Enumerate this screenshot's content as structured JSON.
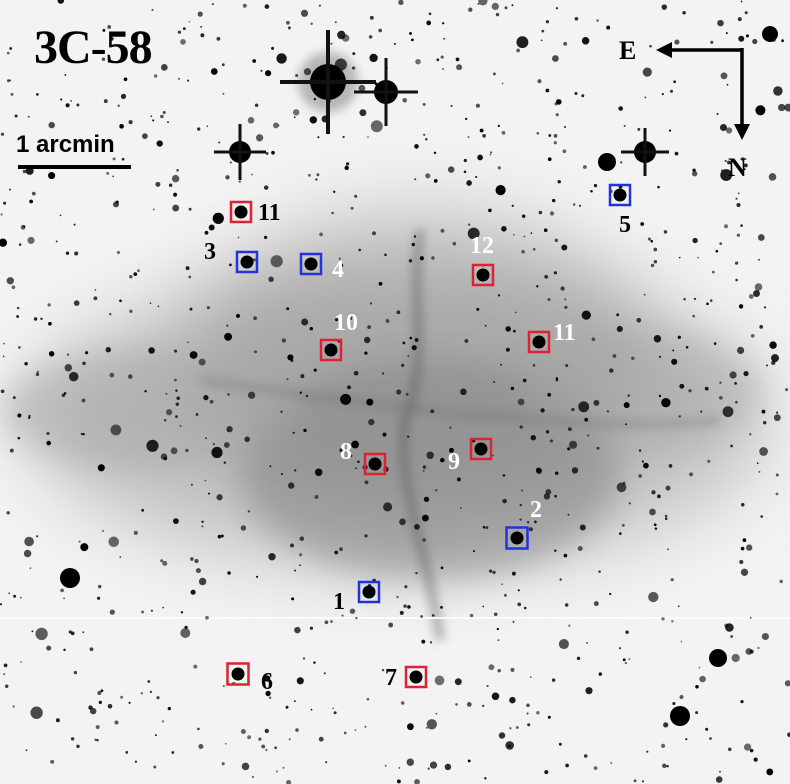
{
  "figure": {
    "title": "3C-58",
    "scale_bar_label": "1 arcmin",
    "compass": {
      "east": "E",
      "north": "N"
    }
  },
  "markers": [
    {
      "label": "1",
      "color": "#2233dd"
    },
    {
      "label": "2",
      "color": "#2233dd"
    },
    {
      "label": "3",
      "color": "#2233dd"
    },
    {
      "label": "4",
      "color": "#2233dd"
    },
    {
      "label": "5",
      "color": "#2233dd"
    },
    {
      "label": "6",
      "color": "#dd2233"
    },
    {
      "label": "7",
      "color": "#dd2233"
    },
    {
      "label": "8",
      "color": "#dd2233"
    },
    {
      "label": "9",
      "color": "#dd2233"
    },
    {
      "label": "10",
      "color": "#dd2233"
    },
    {
      "label": "11",
      "color": "#dd2233"
    },
    {
      "label": "11",
      "color": "#dd2233"
    },
    {
      "label": "12",
      "color": "#dd2233"
    }
  ]
}
